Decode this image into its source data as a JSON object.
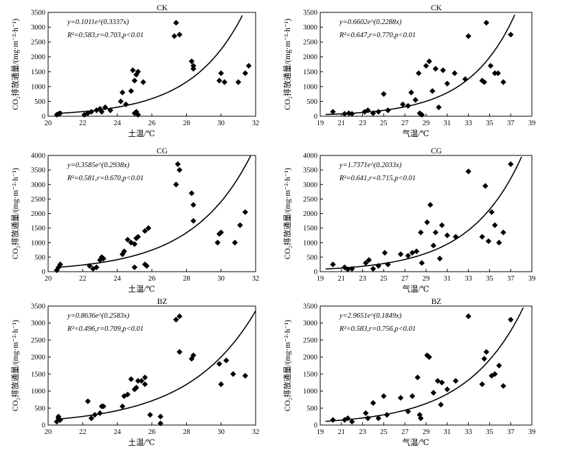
{
  "chart_data": [
    {
      "id": "ck-soil",
      "type": "scatter",
      "title": "CK",
      "xlabel": "土温/℃",
      "ylabel": "CO₂排放通量/(mg·m⁻²·h⁻¹)",
      "xlim": [
        20,
        32
      ],
      "ylim": [
        0,
        3500
      ],
      "xstep": 2,
      "ystep": 500,
      "equation": "y=0.1011e^(0.3337x)",
      "stats": "R²=0.583,r=0.703,p<0.01",
      "fit": {
        "a": 0.1011,
        "b": 0.3337
      },
      "x": [
        20.5,
        20.6,
        20.7,
        22.1,
        22.3,
        22.5,
        22.8,
        23.0,
        23.1,
        23.3,
        23.6,
        24.2,
        24.3,
        24.5,
        24.8,
        24.9,
        25.0,
        25.1,
        25.2,
        25.0,
        25.1,
        25.2,
        25.5,
        27.3,
        27.4,
        27.6,
        28.3,
        28.4,
        28.4,
        29.9,
        30.0,
        30.2,
        31.0,
        31.4,
        31.6
      ],
      "y": [
        50,
        80,
        100,
        50,
        100,
        150,
        200,
        250,
        150,
        300,
        200,
        500,
        800,
        400,
        850,
        1550,
        1200,
        1400,
        1500,
        100,
        150,
        50,
        1150,
        2700,
        3150,
        2750,
        1850,
        1700,
        1600,
        1200,
        1450,
        1150,
        1150,
        1450,
        1700
      ]
    },
    {
      "id": "ck-air",
      "type": "scatter",
      "title": "CK",
      "xlabel": "气温/℃",
      "ylabel": "CO₂排放通量/(mg·m⁻²·h⁻¹)",
      "xlim": [
        19,
        39
      ],
      "ylim": [
        0,
        3500
      ],
      "xstep": 2,
      "ystep": 500,
      "equation": "y=0.6602e^(0.2288x)",
      "stats": "R²=0.647,r=0.770,p<0.01",
      "fit": {
        "a": 0.6602,
        "b": 0.2288
      },
      "x": [
        20.2,
        21.3,
        21.7,
        22.0,
        23.2,
        23.5,
        24.0,
        24.5,
        25.0,
        25.4,
        26.8,
        27.3,
        27.6,
        28.0,
        28.3,
        28.4,
        28.6,
        29.0,
        29.3,
        29.6,
        29.9,
        30.2,
        30.6,
        31.0,
        31.7,
        32.7,
        33.0,
        34.3,
        34.5,
        34.7,
        35.1,
        35.5,
        35.8,
        36.3,
        37.0
      ],
      "y": [
        150,
        80,
        100,
        80,
        150,
        200,
        100,
        150,
        750,
        200,
        400,
        350,
        800,
        550,
        1450,
        100,
        50,
        1700,
        1850,
        850,
        1600,
        300,
        1550,
        1100,
        1450,
        1250,
        2700,
        1200,
        1150,
        3150,
        1700,
        1450,
        1450,
        1150,
        2750
      ]
    },
    {
      "id": "cg-soil",
      "type": "scatter",
      "title": "CG",
      "xlabel": "土温/℃",
      "ylabel": "CO₂排放通量/(mg·m⁻²·h⁻¹)",
      "xlim": [
        20,
        32
      ],
      "ylim": [
        0,
        4000
      ],
      "xstep": 2,
      "ystep": 500,
      "equation": "y=0.3585e^(0.2938x)",
      "stats": "R²=0.581,r=0.670,p<0.01",
      "fit": {
        "a": 0.3585,
        "b": 0.2938
      },
      "x": [
        20.5,
        20.6,
        20.7,
        22.4,
        22.6,
        22.8,
        23.0,
        23.1,
        23.2,
        24.3,
        24.4,
        24.6,
        24.8,
        25.0,
        25.0,
        25.1,
        25.2,
        25.6,
        25.7,
        25.6,
        25.8,
        27.4,
        27.5,
        27.6,
        28.3,
        28.4,
        28.4,
        29.8,
        29.9,
        30.0,
        30.8,
        31.1,
        31.4
      ],
      "y": [
        50,
        150,
        250,
        200,
        100,
        150,
        400,
        500,
        450,
        600,
        700,
        1100,
        1000,
        950,
        150,
        1150,
        1200,
        250,
        200,
        1400,
        1500,
        3000,
        3700,
        3500,
        2700,
        2300,
        1750,
        1000,
        1300,
        1350,
        1000,
        1600,
        2050
      ]
    },
    {
      "id": "cg-air",
      "type": "scatter",
      "title": "CG",
      "xlabel": "气温/℃",
      "ylabel": "CO₂排放通量/(mg·m⁻²·h⁻¹)",
      "xlim": [
        19,
        39
      ],
      "ylim": [
        0,
        4000
      ],
      "xstep": 2,
      "ystep": 500,
      "equation": "y=1.7371e^(0.2033x)",
      "stats": "R²=0.641,r=0.715,p<0.01",
      "fit": {
        "a": 1.7371,
        "b": 0.2033
      },
      "x": [
        20.2,
        21.3,
        21.6,
        22.0,
        23.3,
        23.6,
        24.0,
        24.5,
        25.1,
        25.4,
        26.6,
        27.3,
        27.7,
        28.1,
        28.5,
        28.6,
        29.1,
        29.4,
        29.7,
        29.9,
        30.3,
        30.5,
        31.0,
        31.8,
        33.0,
        34.3,
        34.6,
        34.9,
        35.2,
        35.5,
        35.9,
        36.3,
        37.0
      ],
      "y": [
        250,
        150,
        80,
        100,
        300,
        400,
        100,
        200,
        650,
        250,
        600,
        550,
        650,
        700,
        1350,
        300,
        1700,
        2300,
        900,
        1350,
        450,
        1600,
        1250,
        1200,
        3450,
        1200,
        2950,
        1050,
        2050,
        1600,
        1000,
        1350,
        3700
      ]
    },
    {
      "id": "bz-soil",
      "type": "scatter",
      "title": "BZ",
      "xlabel": "土温/℃",
      "ylabel": "CO₂排放通量/(mg·m⁻²·h⁻¹)",
      "xlim": [
        20,
        32
      ],
      "ylim": [
        0,
        3500
      ],
      "xstep": 2,
      "ystep": 500,
      "equation": "y=0.8636e^(0.2583x)",
      "stats": "R²=0.496,r=0.709,p<0.01",
      "fit": {
        "a": 0.8636,
        "b": 0.2583
      },
      "x": [
        20.5,
        20.6,
        20.7,
        20.6,
        22.3,
        22.5,
        22.7,
        23.0,
        23.1,
        23.2,
        24.3,
        24.4,
        24.6,
        24.8,
        25.0,
        25.1,
        25.2,
        25.4,
        25.6,
        25.6,
        25.9,
        26.5,
        26.5,
        27.4,
        27.6,
        27.6,
        28.3,
        28.4,
        29.9,
        30.0,
        30.3,
        30.7,
        31.4
      ],
      "y": [
        100,
        200,
        150,
        250,
        700,
        200,
        300,
        350,
        550,
        550,
        550,
        850,
        900,
        1350,
        1050,
        1100,
        1300,
        1300,
        1400,
        1200,
        300,
        250,
        50,
        3100,
        3200,
        2150,
        1950,
        2050,
        1800,
        1200,
        1900,
        1500,
        1450
      ]
    },
    {
      "id": "bz-air",
      "type": "scatter",
      "title": "BZ",
      "xlabel": "气温/℃",
      "ylabel": "CO₂排放通量/(mg·m⁻²·h⁻¹)",
      "xlim": [
        19,
        39
      ],
      "ylim": [
        0,
        3500
      ],
      "xstep": 2,
      "ystep": 500,
      "equation": "y=2.9651e^(0.1849x)",
      "stats": "R²=0.583,r=0.756,p<0.01",
      "fit": {
        "a": 2.9651,
        "b": 0.1849
      },
      "x": [
        20.2,
        21.3,
        21.6,
        22.0,
        23.3,
        23.5,
        24.0,
        24.5,
        25.0,
        25.3,
        26.6,
        27.3,
        27.7,
        28.2,
        28.4,
        28.5,
        29.1,
        29.3,
        29.7,
        30.1,
        30.4,
        30.5,
        31.0,
        31.8,
        33.0,
        34.3,
        34.5,
        34.7,
        35.2,
        35.5,
        35.9,
        36.3,
        37.0
      ],
      "y": [
        150,
        150,
        200,
        100,
        350,
        200,
        650,
        200,
        850,
        300,
        800,
        400,
        850,
        1400,
        300,
        200,
        2050,
        2000,
        950,
        1300,
        600,
        1250,
        1050,
        1300,
        3200,
        1200,
        1950,
        2150,
        1450,
        1500,
        1750,
        1150,
        3100
      ]
    }
  ]
}
